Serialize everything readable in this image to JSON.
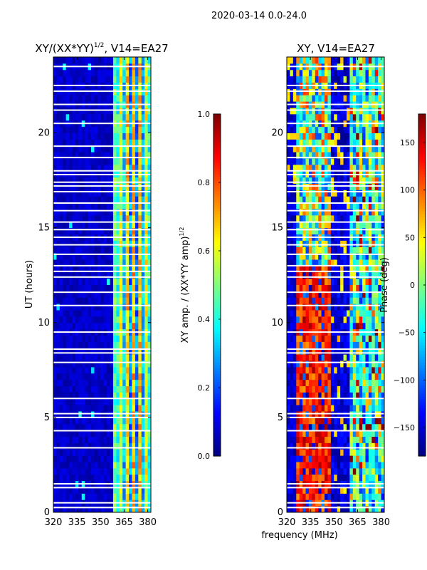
{
  "figure": {
    "suptitle": "2020-03-14 0.0-24.0",
    "shared_xlabel": "frequency (MHz)"
  },
  "colormap": {
    "name": "jet",
    "stops": [
      "#00007f",
      "#0000ff",
      "#007fff",
      "#00ffff",
      "#7fff7f",
      "#ffff00",
      "#ff7f00",
      "#ff0000",
      "#7f0000"
    ]
  },
  "chart_data": [
    {
      "type": "heatmap",
      "title": "XY/(XX*YY)",
      "title_superscript": "1/2",
      "title_suffix": ", V14=EA27",
      "xlabel": "",
      "ylabel": "UT (hours)",
      "xlim": [
        320,
        382
      ],
      "ylim": [
        0,
        24
      ],
      "xticks": [
        320,
        335,
        350,
        365,
        380
      ],
      "yticks": [
        0,
        5,
        10,
        15,
        20
      ],
      "value_range": [
        0.0,
        1.0
      ],
      "colorbar": {
        "label": "XY amp. / (XX*YY amp)",
        "label_superscript": "1/2",
        "range": [
          0.0,
          1.0
        ],
        "ticks": [
          0.0,
          0.2,
          0.4,
          0.6,
          0.8,
          1.0
        ],
        "tick_labels": [
          "0.0",
          "0.2",
          "0.4",
          "0.6",
          "0.8",
          "1.0"
        ]
      },
      "feature": "mostly low (~0.05) below 359 MHz; bright vertical striping 0.3-0.7 between 359 and 382 MHz"
    },
    {
      "type": "heatmap",
      "title": "XY, V14=EA27",
      "xlabel": "frequency (MHz)",
      "ylabel": "",
      "xlim": [
        320,
        382
      ],
      "ylim": [
        0,
        24
      ],
      "xticks": [
        320,
        335,
        350,
        365,
        380
      ],
      "yticks": [
        0,
        5,
        10,
        15,
        20
      ],
      "value_range": [
        -180,
        180
      ],
      "colorbar": {
        "label": "Phase (deg)",
        "range": [
          -180,
          180
        ],
        "ticks": [
          -150,
          -100,
          -50,
          0,
          50,
          100,
          150
        ],
        "tick_labels": [
          "−150",
          "−100",
          "−50",
          "0",
          "50",
          "100",
          "150"
        ]
      },
      "feature": "phase near 100-170 deg around 330-345 MHz below 13 h; mixed phase elsewhere"
    }
  ],
  "flagged_hours": [
    0.25,
    0.5,
    1.3,
    1.5,
    3.4,
    4.3,
    5.0,
    5.2,
    6.0,
    7.9,
    8.4,
    8.6,
    9.5,
    10.9,
    11.6,
    12.4,
    12.7,
    13.0,
    13.6,
    14.1,
    14.5,
    14.9,
    15.3,
    15.9,
    16.3,
    16.9,
    17.2,
    17.4,
    17.8,
    18.0,
    18.7,
    19.3,
    20.5,
    21.2,
    21.5,
    22.2,
    22.5,
    23.5
  ]
}
